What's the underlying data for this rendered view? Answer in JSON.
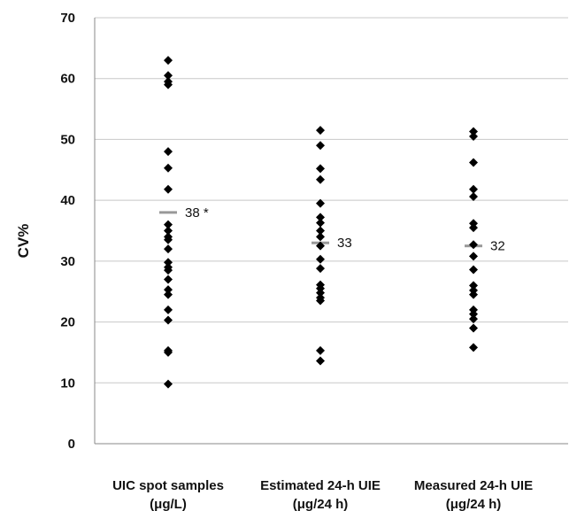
{
  "chart_data": {
    "type": "scatter",
    "ylabel": "CV%",
    "ylim": [
      0,
      70
    ],
    "yticks": [
      0,
      10,
      20,
      30,
      40,
      50,
      60,
      70
    ],
    "grid": true,
    "categories": [
      {
        "line1": "UIC spot samples",
        "line2": "(μg/L)"
      },
      {
        "line1": "Estimated 24-h UIE",
        "line2": "(μg/24 h)"
      },
      {
        "line1": "Measured 24-h UIE",
        "line2": "(μg/24 h)"
      }
    ],
    "series": [
      {
        "values": [
          63,
          60.5,
          59.5,
          59,
          48,
          45.3,
          41.8,
          36,
          35,
          34,
          33.5,
          32,
          29.8,
          29,
          28.5,
          27,
          25.3,
          24.5,
          22,
          20.3,
          15.3,
          15,
          9.8
        ],
        "median": 38,
        "median_label": "38 *"
      },
      {
        "values": [
          51.5,
          49,
          45.2,
          43.4,
          39.5,
          37.2,
          36.3,
          35,
          34,
          32.5,
          30.3,
          28.8,
          26.1,
          25.5,
          24.8,
          24,
          23.5,
          15.3,
          13.6
        ],
        "median": 33,
        "median_label": "33"
      },
      {
        "values": [
          51.3,
          50.5,
          46.2,
          41.8,
          40.6,
          36.2,
          35.5,
          32.7,
          30.8,
          28.6,
          26,
          25.2,
          24.5,
          22,
          21.3,
          20.5,
          19,
          15.8
        ],
        "median": 32.5,
        "median_label": "32"
      }
    ],
    "colors": {
      "points": "#000000",
      "median": "#999999",
      "grid": "#c8c8c8",
      "axis": "#888888"
    }
  }
}
